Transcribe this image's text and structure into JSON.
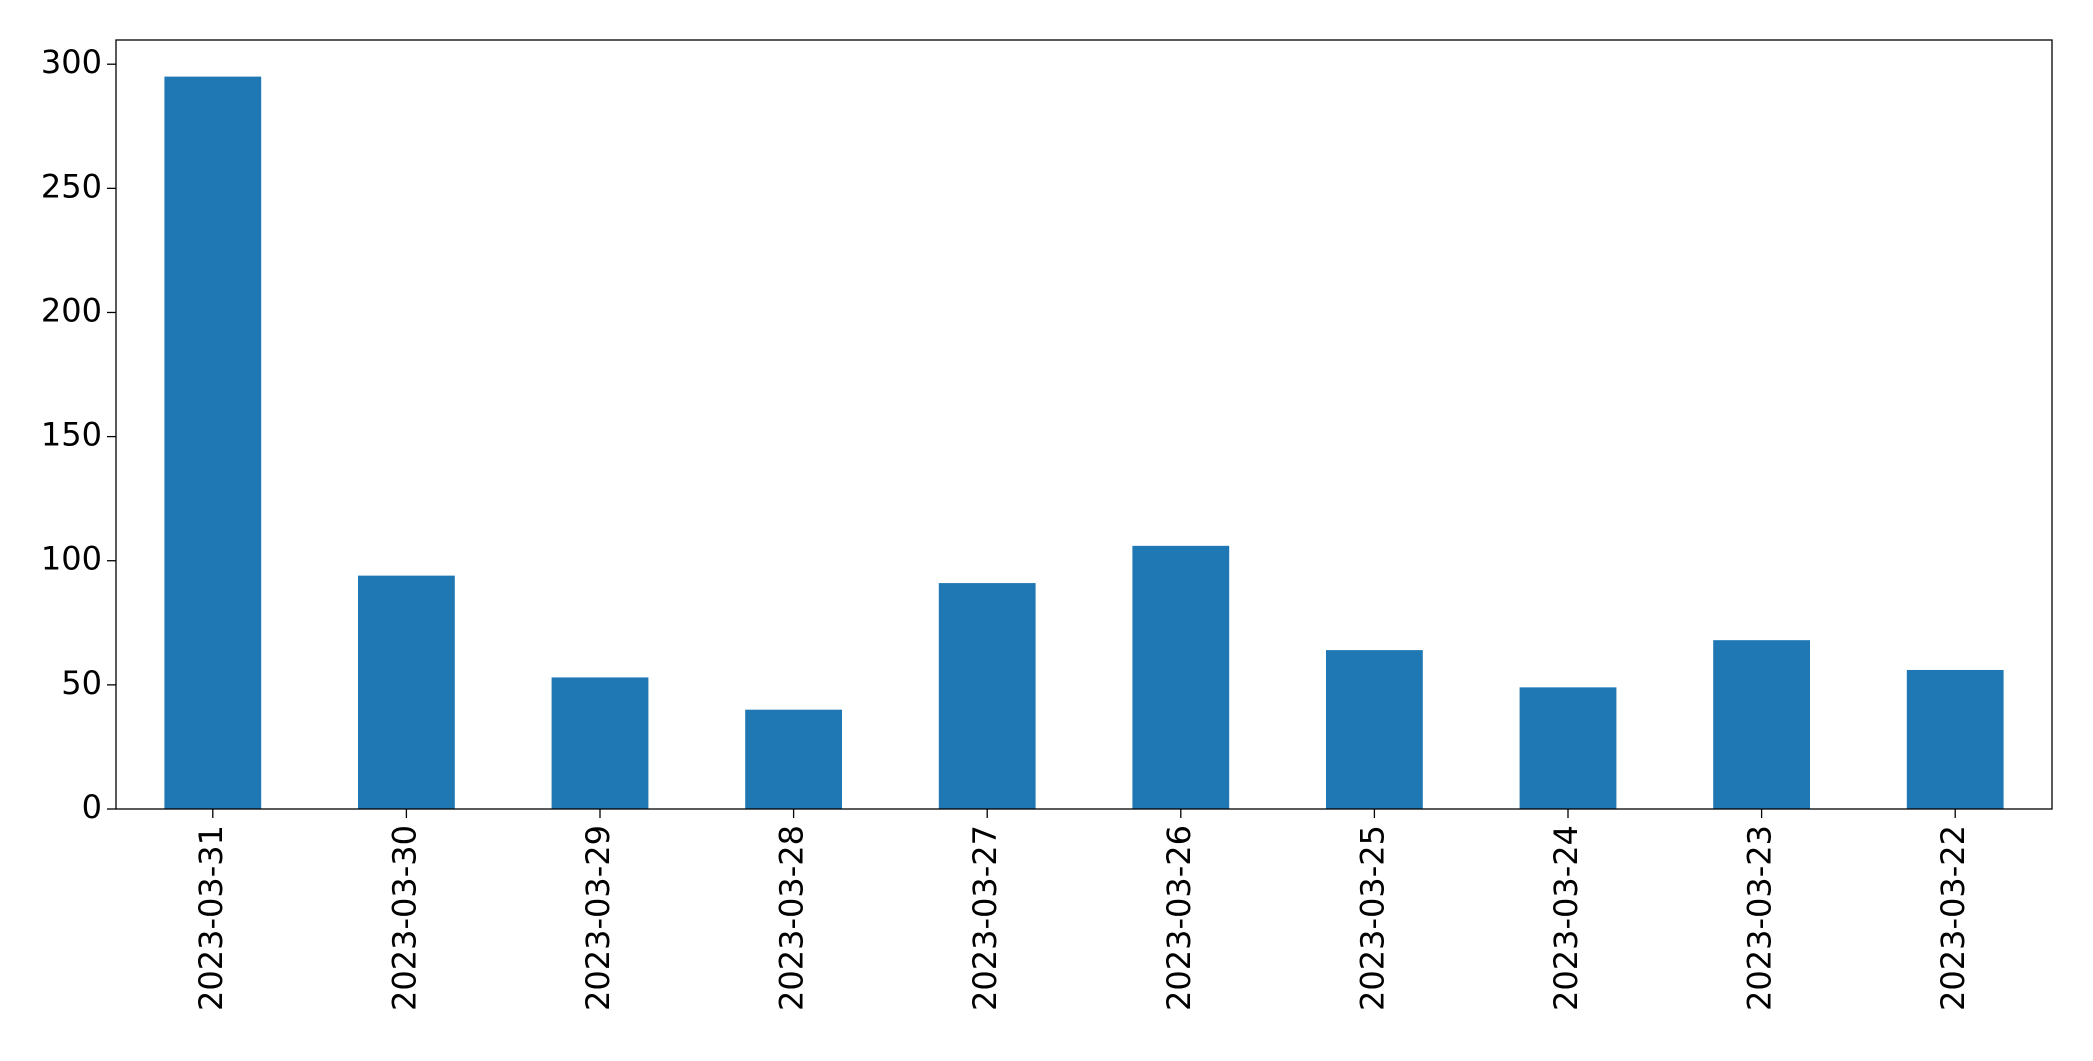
{
  "chart_data": {
    "type": "bar",
    "categories": [
      "2023-03-31",
      "2023-03-30",
      "2023-03-29",
      "2023-03-28",
      "2023-03-27",
      "2023-03-26",
      "2023-03-25",
      "2023-03-24",
      "2023-03-23",
      "2023-03-22"
    ],
    "values": [
      295,
      94,
      53,
      40,
      91,
      106,
      64,
      49,
      68,
      56
    ],
    "color": "#1f77b4",
    "ylim": [
      0,
      309.75
    ],
    "yticks": [
      0,
      50,
      100,
      150,
      200,
      250,
      300
    ],
    "grid": false
  }
}
